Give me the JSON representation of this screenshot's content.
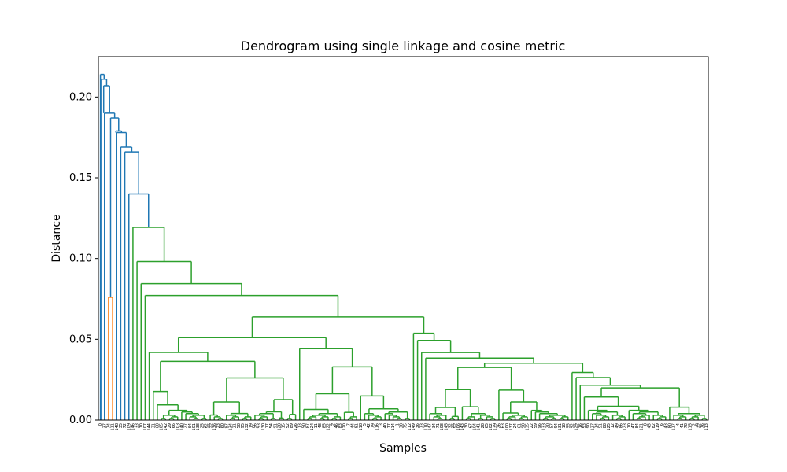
{
  "chart_data": {
    "type": "dendrogram",
    "title": "Dendrogram using single linkage and cosine metric",
    "xlabel": "Samples",
    "ylabel": "Distance",
    "ylim": [
      0.0,
      0.225
    ],
    "yticks": [
      "0.00",
      "0.05",
      "0.10",
      "0.15",
      "0.20"
    ],
    "ytick_values": [
      0.0,
      0.05,
      0.1,
      0.15,
      0.2
    ],
    "leaf_count": 150,
    "colors": {
      "outlier": "#1f77b4",
      "small_cluster": "#ff7f0e",
      "main_cluster": "#2ca02c"
    },
    "top_merges": [
      0.214,
      0.211,
      0.207,
      0.19,
      0.187,
      0.179,
      0.178,
      0.169,
      0.166,
      0.14
    ],
    "small_cluster_height": 0.076,
    "main_cluster_heights": [
      0.132,
      0.131,
      0.129,
      0.128,
      0.127,
      0.124,
      0.122,
      0.12,
      0.116,
      0.114,
      0.11,
      0.108,
      0.105,
      0.104,
      0.1,
      0.097,
      0.094,
      0.09,
      0.085,
      0.08,
      0.076,
      0.07,
      0.065,
      0.06,
      0.055,
      0.05,
      0.045,
      0.04,
      0.035,
      0.03,
      0.025,
      0.02,
      0.015,
      0.01,
      0.005
    ]
  }
}
